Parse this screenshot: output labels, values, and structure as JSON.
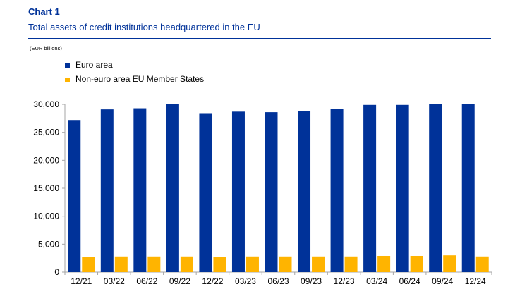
{
  "header": {
    "chart_number": "Chart 1",
    "title": "Total assets of credit institutions headquartered in the EU",
    "unit_note": "(EUR billions)"
  },
  "colors": {
    "euro_area": "#003299",
    "non_euro": "#FFB400",
    "title_text": "#003299",
    "axis": "#a6a6a6"
  },
  "chart_data": {
    "type": "bar",
    "title": "Total assets of credit institutions headquartered in the EU",
    "ylabel": "",
    "xlabel": "",
    "categories": [
      "12/21",
      "03/22",
      "06/22",
      "09/22",
      "12/22",
      "03/23",
      "06/23",
      "09/23",
      "12/23",
      "03/24",
      "06/24",
      "09/24",
      "12/24"
    ],
    "series": [
      {
        "name": "Euro area",
        "color": "#003299",
        "values": [
          27200,
          29100,
          29300,
          30000,
          28300,
          28700,
          28600,
          28800,
          29200,
          29900,
          29900,
          30100,
          30100
        ]
      },
      {
        "name": "Non-euro area EU Member States",
        "color": "#FFB400",
        "values": [
          2700,
          2800,
          2800,
          2800,
          2700,
          2800,
          2800,
          2800,
          2800,
          2900,
          2900,
          3000,
          2800
        ]
      }
    ],
    "ylim": [
      0,
      30000
    ],
    "yticks": [
      0,
      5000,
      10000,
      15000,
      20000,
      25000,
      30000
    ],
    "ytick_labels": [
      "0",
      "5,000",
      "10,000",
      "15,000",
      "20,000",
      "25,000",
      "30,000"
    ],
    "grid": false,
    "legend_position": "top-left"
  }
}
